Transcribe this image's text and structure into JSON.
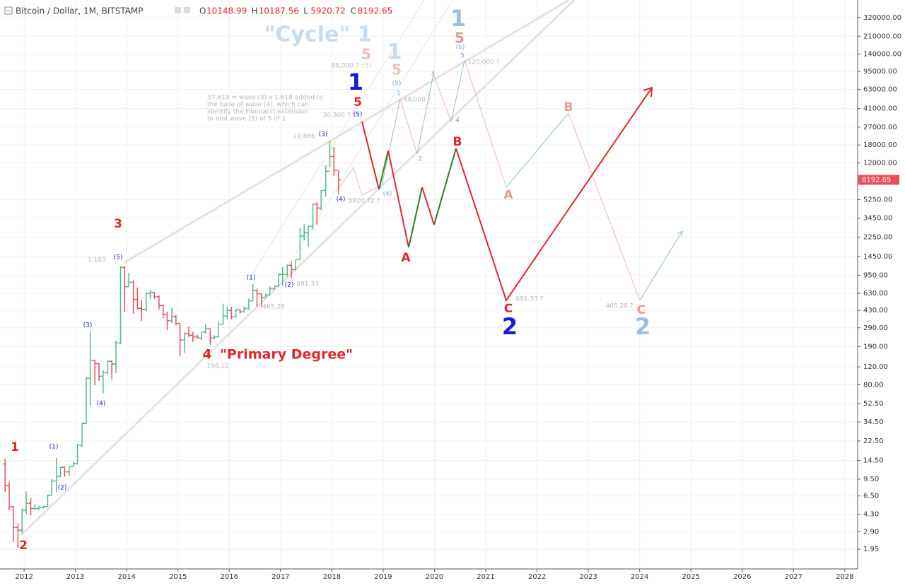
{
  "chart_data": {
    "type": "ohlc",
    "header": {
      "symbol": "Bitcoin / Dollar, 1M, BITSTAMP",
      "ohlc": [
        {
          "label": "O",
          "value": 10148.99
        },
        {
          "label": "H",
          "value": 10187.56
        },
        {
          "label": "L",
          "value": 5920.72
        },
        {
          "label": "C",
          "value": 8192.65
        }
      ]
    },
    "log_scale": true,
    "grid": true,
    "up_color": "#53b987",
    "down_color": "#eb4d5c",
    "xlim": [
      2011.53,
      2028.25
    ],
    "xticks": [
      2012,
      2013,
      2014,
      2015,
      2016,
      2017,
      2018,
      2019,
      2020,
      2021,
      2022,
      2023,
      2024,
      2025,
      2026,
      2027,
      2028
    ],
    "ylim": [
      1.25,
      476000
    ],
    "yticks": [
      {
        "value": 320000,
        "label": "320000.00"
      },
      {
        "value": 210000,
        "label": "210000.00"
      },
      {
        "value": 140000,
        "label": "140000.00"
      },
      {
        "value": 95000,
        "label": "95000.00"
      },
      {
        "value": 63000,
        "label": "63000.00"
      },
      {
        "value": 41000,
        "label": "41000.00"
      },
      {
        "value": 27000,
        "label": "27000.00"
      },
      {
        "value": 18000,
        "label": "18000.00"
      },
      {
        "value": 12000,
        "label": "12000.00"
      },
      {
        "value": 5250,
        "label": "5250.00"
      },
      {
        "value": 3450,
        "label": "3450.00"
      },
      {
        "value": 2250,
        "label": "2250.00"
      },
      {
        "value": 1450,
        "label": "1450.00"
      },
      {
        "value": 950,
        "label": "950.00"
      },
      {
        "value": 630,
        "label": "630.00"
      },
      {
        "value": 430,
        "label": "430.00"
      },
      {
        "value": 290,
        "label": "290.00"
      },
      {
        "value": 190,
        "label": "190.00"
      },
      {
        "value": 120,
        "label": "120.00"
      },
      {
        "value": 80,
        "label": "80.00"
      },
      {
        "value": 52.5,
        "label": "52.50"
      },
      {
        "value": 34.5,
        "label": "34.50"
      },
      {
        "value": 22.5,
        "label": "22.50"
      },
      {
        "value": 14.5,
        "label": "14.50"
      },
      {
        "value": 9.5,
        "label": "9.50"
      },
      {
        "value": 6.5,
        "label": "6.50"
      },
      {
        "value": 4.3,
        "label": "4.30"
      },
      {
        "value": 2.9,
        "label": "2.90"
      },
      {
        "value": 1.95,
        "label": "1.95"
      }
    ],
    "bars": {
      "x": [
        2011.63,
        2011.71,
        2011.79,
        2011.88,
        2011.96,
        2012.04,
        2012.13,
        2012.21,
        2012.29,
        2012.38,
        2012.46,
        2012.54,
        2012.63,
        2012.71,
        2012.79,
        2012.88,
        2012.96,
        2013.04,
        2013.13,
        2013.21,
        2013.29,
        2013.38,
        2013.46,
        2013.54,
        2013.63,
        2013.71,
        2013.79,
        2013.88,
        2013.96,
        2014.04,
        2014.13,
        2014.21,
        2014.29,
        2014.38,
        2014.46,
        2014.54,
        2014.63,
        2014.71,
        2014.79,
        2014.88,
        2014.96,
        2015.04,
        2015.13,
        2015.21,
        2015.29,
        2015.38,
        2015.46,
        2015.54,
        2015.63,
        2015.71,
        2015.79,
        2015.88,
        2015.96,
        2016.04,
        2016.13,
        2016.21,
        2016.29,
        2016.38,
        2016.46,
        2016.54,
        2016.63,
        2016.71,
        2016.79,
        2016.88,
        2016.96,
        2017.04,
        2017.13,
        2017.21,
        2017.29,
        2017.38,
        2017.46,
        2017.54,
        2017.63,
        2017.71,
        2017.79,
        2017.88,
        2017.96,
        2018.04,
        2018.13
      ],
      "open": [
        13.4,
        8.2,
        5.1,
        3.2,
        3.0,
        4.7,
        5.5,
        4.9,
        4.9,
        5.0,
        5.1,
        6.6,
        9.1,
        10.1,
        12.4,
        11.2,
        12.6,
        13.5,
        20.4,
        33.4,
        93,
        139,
        129,
        97,
        106,
        136,
        128,
        206,
        1129,
        732,
        810,
        550,
        450,
        440,
        630,
        640,
        585,
        480,
        390,
        340,
        375,
        320,
        220,
        254,
        245,
        236,
        230,
        264,
        284,
        230,
        236,
        314,
        378,
        430,
        370,
        436,
        416,
        449,
        532,
        673,
        624,
        575,
        609,
        700,
        742,
        966,
        968,
        1190,
        1080,
        1348,
        2300,
        2480,
        2870,
        4730,
        4340,
        6440,
        9950,
        13880,
        10148.99
      ],
      "high": [
        15,
        8.9,
        5.2,
        3.5,
        4.9,
        7.2,
        6.2,
        5.4,
        5.2,
        5.2,
        6.7,
        9.5,
        15.4,
        12.5,
        12.6,
        12.6,
        14.0,
        21,
        34,
        95,
        266,
        140,
        130,
        111,
        140,
        140,
        217,
        1163,
        1163,
        1004,
        850,
        720,
        540,
        640,
        680,
        650,
        600,
        490,
        415,
        455,
        385,
        320,
        265,
        300,
        263,
        248,
        268,
        316,
        285,
        245,
        335,
        500,
        465,
        465,
        443,
        439,
        468,
        560,
        780,
        700,
        625,
        625,
        740,
        750,
        980,
        1150,
        1210,
        1300,
        1350,
        2750,
        3000,
        2920,
        4800,
        4980,
        6470,
        11400,
        19666,
        17200,
        10187.56
      ],
      "low": [
        7.1,
        4.7,
        2.3,
        2.0,
        2.8,
        4.3,
        4.2,
        4.7,
        4.7,
        4.9,
        5.1,
        6.6,
        7.1,
        9.9,
        10.0,
        10.3,
        12.6,
        13.2,
        19.7,
        33,
        50,
        79,
        87,
        66,
        100,
        90,
        104,
        200,
        410,
        730,
        400,
        440,
        340,
        420,
        550,
        560,
        440,
        360,
        275,
        320,
        305,
        152,
        165,
        234,
        210,
        227,
        218,
        253,
        198,
        226,
        235,
        310,
        350,
        350,
        365,
        400,
        412,
        437,
        530,
        470,
        465,
        575,
        605,
        680,
        740,
        752,
        920,
        891.33,
        1060,
        1340,
        2100,
        1800,
        2650,
        2980,
        4120,
        5600,
        10900,
        9000,
        5920.72
      ],
      "close": [
        8.2,
        5.1,
        3.2,
        3.0,
        4.7,
        5.5,
        4.9,
        4.9,
        5.0,
        5.1,
        6.6,
        9.1,
        10.1,
        12.4,
        11.2,
        12.6,
        13.5,
        20.4,
        33.4,
        93,
        139,
        129,
        97,
        106,
        136,
        128,
        206,
        1129,
        732,
        810,
        550,
        450,
        440,
        630,
        640,
        585,
        480,
        390,
        340,
        375,
        320,
        220,
        254,
        245,
        236,
        230,
        264,
        284,
        230,
        236,
        314,
        378,
        430,
        370,
        436,
        416,
        449,
        532,
        673,
        624,
        575,
        609,
        700,
        742,
        966,
        968,
        1190,
        1080,
        1348,
        2300,
        2480,
        2870,
        4730,
        4340,
        6440,
        9950,
        13880,
        10100,
        8192.65
      ]
    },
    "annotations": [
      "\"Cycle\" 1",
      "1",
      "5",
      "(5)",
      "5",
      "120,000 ?",
      "5",
      "88,000 ?",
      "(5)",
      "1",
      "5",
      "(5)",
      "1",
      "3",
      "49,000 ?",
      "4",
      "2",
      "1",
      "5",
      "(5)",
      "30,300 ?",
      "37,419 = wave (3) x 1.618 added to",
      "the base of wave (4), which can",
      "identify the Fibonacci extension",
      "to end wave (5) of 5 of 1",
      "19,666",
      "(3)",
      "(4)",
      "(4)",
      "5920.72 ?",
      "B",
      "A",
      "C",
      "891.33 ?",
      "2",
      "B",
      "A",
      "C",
      "465.28 ?",
      "2",
      "3",
      "1,163",
      "(5)",
      "(3)",
      "(4)",
      "(1)",
      "(2)",
      "1",
      "2",
      "4",
      "\"Primary Degree\"",
      "198.12",
      "(1)",
      "(2)",
      "891.33",
      "465.28"
    ]
  }
}
